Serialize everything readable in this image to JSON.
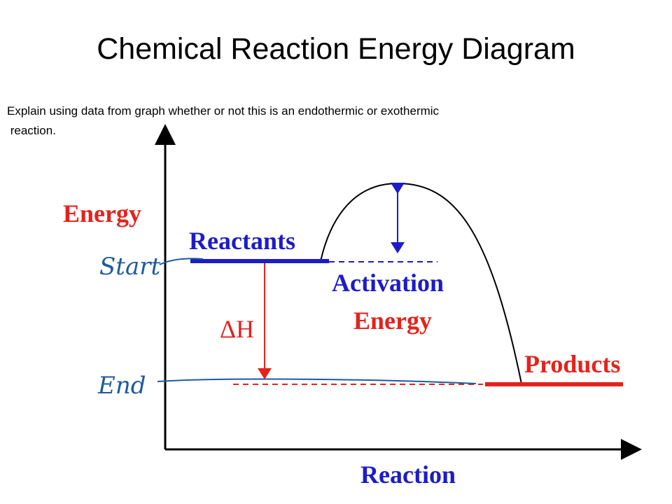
{
  "header": {
    "title": "Chemical Reaction Energy Diagram"
  },
  "question": {
    "lines": [
      "Explain using data from graph whether or not this is an endothermic or exothermic",
      " reaction."
    ]
  },
  "diagram": {
    "y_axis_label": "Energy",
    "x_axis_label": "Reaction",
    "reactants": "Reactants",
    "products": "Products",
    "activation_energy": [
      "Activation",
      "Energy"
    ],
    "delta_h": "ΔH",
    "annotations": {
      "start": "Start",
      "end": "End"
    }
  }
}
